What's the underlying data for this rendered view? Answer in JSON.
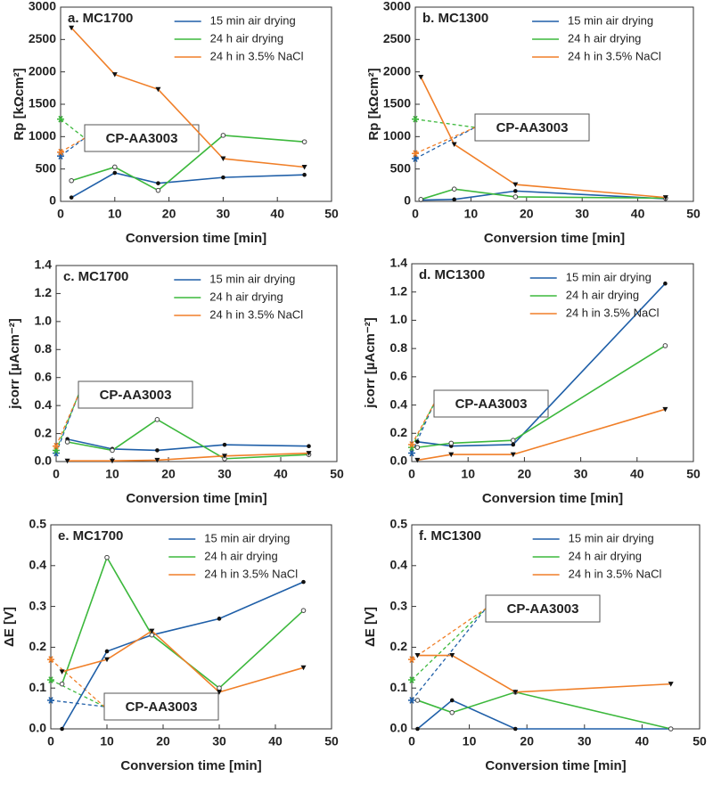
{
  "chart_data": [
    {
      "type": "line",
      "title": "a. MC1700",
      "x_label": "Conversion time [min]",
      "y_label": "Rp [kΩcm²]",
      "annotation": "CP-AA3003",
      "x": [
        2,
        10,
        18,
        30,
        45
      ],
      "xlim": [
        0,
        50
      ],
      "xticks": [
        0,
        10,
        20,
        30,
        40,
        50
      ],
      "ylim": [
        0,
        3000
      ],
      "yticks": [
        0,
        500,
        1000,
        1500,
        2000,
        2500,
        3000
      ],
      "series": [
        {
          "name": "15 min air drying",
          "color": "#1f5fa8",
          "values": [
            60,
            440,
            280,
            370,
            410
          ],
          "reference": 700
        },
        {
          "name": "24 h air drying",
          "color": "#3cb83c",
          "values": [
            320,
            530,
            170,
            1020,
            920
          ],
          "reference": 1270
        },
        {
          "name": "24 h in 3.5% NaCl",
          "color": "#f07f28",
          "values": [
            2680,
            1960,
            1730,
            660,
            530
          ],
          "reference": 760
        }
      ]
    },
    {
      "type": "line",
      "title": "b. MC1300",
      "x_label": "Conversion time [min]",
      "y_label": "Rp [kΩcm²]",
      "annotation": "CP-AA3003",
      "x": [
        1,
        7,
        18,
        45
      ],
      "xlim": [
        0,
        50
      ],
      "xticks": [
        0,
        10,
        20,
        30,
        40,
        50
      ],
      "ylim": [
        0,
        3000
      ],
      "yticks": [
        0,
        500,
        1000,
        1500,
        2000,
        2500,
        3000
      ],
      "series": [
        {
          "name": "15 min air drying",
          "color": "#1f5fa8",
          "values": [
            20,
            30,
            160,
            40
          ],
          "reference": 660
        },
        {
          "name": "24 h air drying",
          "color": "#3cb83c",
          "values": [
            30,
            190,
            70,
            50
          ],
          "reference": 1270
        },
        {
          "name": "24 h in 3.5% NaCl",
          "color": "#f07f28",
          "values": [
            1920,
            880,
            260,
            60
          ],
          "reference": 740
        }
      ]
    },
    {
      "type": "line",
      "title": "c. MC1700",
      "x_label": "Conversion time [min]",
      "y_label": "jcorr [µAcm⁻²]",
      "annotation": "CP-AA3003",
      "x": [
        2,
        10,
        18,
        30,
        45
      ],
      "xlim": [
        0,
        50
      ],
      "xticks": [
        0,
        10,
        20,
        30,
        40,
        50
      ],
      "ylim": [
        0,
        1.4
      ],
      "yticks": [
        {
          "value": 0,
          "label": "0.0"
        },
        0.2,
        0.4,
        0.6,
        0.8,
        {
          "value": 1,
          "label": "1.0"
        },
        1.2,
        1.4
      ],
      "series": [
        {
          "name": "15 min air drying",
          "color": "#1f5fa8",
          "values": [
            0.16,
            0.09,
            0.08,
            0.12,
            0.11
          ],
          "reference": 0.06
        },
        {
          "name": "24 h air drying",
          "color": "#3cb83c",
          "values": [
            0.14,
            0.08,
            0.3,
            0.02,
            0.05
          ],
          "reference": 0.08
        },
        {
          "name": "24 h in 3.5% NaCl",
          "color": "#f07f28",
          "values": [
            0.005,
            0.005,
            0.01,
            0.04,
            0.06
          ],
          "reference": 0.11
        }
      ]
    },
    {
      "type": "line",
      "title": "d. MC1300",
      "x_label": "Conversion time [min]",
      "y_label": "jcorr [µAcm⁻²]",
      "annotation": "CP-AA3003",
      "x": [
        1,
        7,
        18,
        45
      ],
      "xlim": [
        0,
        50
      ],
      "xticks": [
        0,
        10,
        20,
        30,
        40,
        50
      ],
      "ylim": [
        0,
        1.4
      ],
      "yticks": [
        {
          "value": 0,
          "label": "0.0"
        },
        0.2,
        0.4,
        0.6,
        0.8,
        {
          "value": 1,
          "label": "1.0"
        },
        1.2,
        1.4
      ],
      "series": [
        {
          "name": "15 min air drying",
          "color": "#1f5fa8",
          "values": [
            0.14,
            0.11,
            0.12,
            1.26
          ],
          "reference": 0.06
        },
        {
          "name": "24 h air drying",
          "color": "#3cb83c",
          "values": [
            0.1,
            0.13,
            0.15,
            0.82
          ],
          "reference": 0.1
        },
        {
          "name": "24 h in 3.5% NaCl",
          "color": "#f07f28",
          "values": [
            0.01,
            0.05,
            0.05,
            0.37
          ],
          "reference": 0.12
        }
      ]
    },
    {
      "type": "line",
      "title": "e. MC1700",
      "x_label": "Conversion time [min]",
      "y_label": "ΔE [V]",
      "annotation": "CP-AA3003",
      "x": [
        2,
        10,
        18,
        30,
        45
      ],
      "xlim": [
        0,
        50
      ],
      "xticks": [
        0,
        10,
        20,
        30,
        40,
        50
      ],
      "ylim": [
        0,
        0.5
      ],
      "yticks": [
        {
          "value": 0,
          "label": "0.0"
        },
        0.1,
        0.2,
        0.3,
        0.4,
        0.5
      ],
      "series": [
        {
          "name": "15 min air drying",
          "color": "#1f5fa8",
          "values": [
            0,
            0.19,
            0.23,
            0.27,
            0.36
          ],
          "reference": 0.07
        },
        {
          "name": "24 h air drying",
          "color": "#3cb83c",
          "values": [
            0.11,
            0.42,
            0.23,
            0.1,
            0.29
          ],
          "reference": 0.12
        },
        {
          "name": "24 h in 3.5% NaCl",
          "color": "#f07f28",
          "values": [
            0.14,
            0.17,
            0.24,
            0.09,
            0.15
          ],
          "reference": 0.17
        }
      ]
    },
    {
      "type": "line",
      "title": "f. MC1300",
      "x_label": "Conversion time [min]",
      "y_label": "ΔE [V]",
      "annotation": "CP-AA3003",
      "x": [
        1,
        7,
        18,
        45
      ],
      "xlim": [
        0,
        50
      ],
      "xticks": [
        0,
        10,
        20,
        30,
        40,
        50
      ],
      "ylim": [
        0,
        0.5
      ],
      "yticks": [
        {
          "value": 0,
          "label": "0.0"
        },
        0.1,
        0.2,
        0.3,
        0.4,
        0.5
      ],
      "series": [
        {
          "name": "15 min air drying",
          "color": "#1f5fa8",
          "values": [
            0,
            0.07,
            0,
            0
          ],
          "reference": 0.07
        },
        {
          "name": "24 h air drying",
          "color": "#3cb83c",
          "values": [
            0.07,
            0.04,
            0.09,
            0
          ],
          "reference": 0.12
        },
        {
          "name": "24 h in 3.5% NaCl",
          "color": "#f07f28",
          "values": [
            0.18,
            0.18,
            0.09,
            0.11
          ],
          "reference": 0.17
        }
      ]
    }
  ]
}
